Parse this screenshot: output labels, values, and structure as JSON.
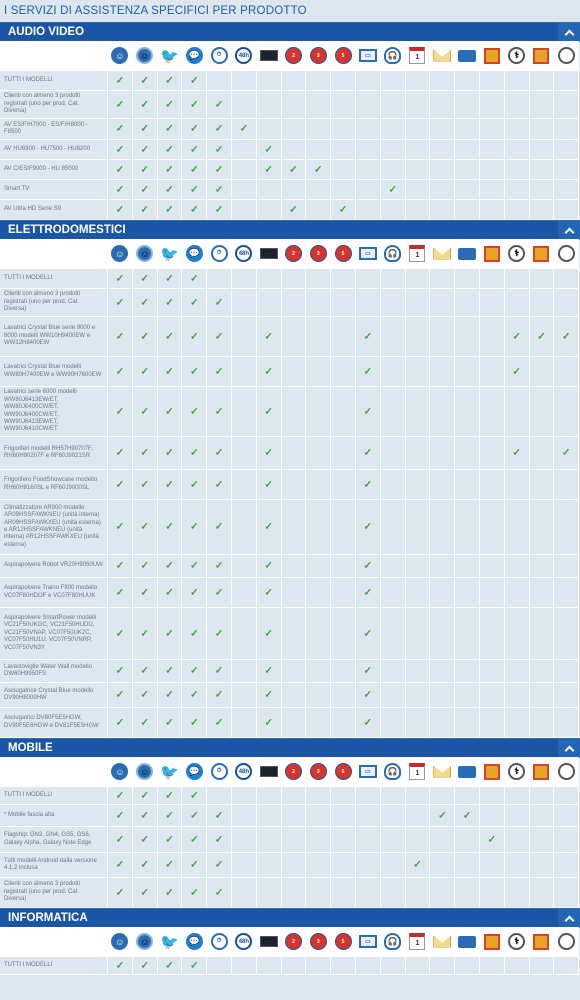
{
  "page_title": "I SERVIZI DI ASSISTENZA SPECIFICI PER PRODOTTO",
  "icons": [
    "chat-agent-icon",
    "chat-agent-2-icon",
    "twitter-icon",
    "messenger-icon",
    "clock-support-icon",
    "48h-icon",
    "tv-screen-icon",
    "2-anni-badge-icon",
    "3-anni-badge-icon",
    "5-anni-badge-icon",
    "remote-monitor-icon",
    "headset-icon",
    "calendar-1-icon",
    "envelope-icon",
    "delivery-truck-icon",
    "gift-icon",
    "doctor-icon",
    "extra-1-icon",
    "extra-2-icon"
  ],
  "icon_glyphs": [
    "☺",
    "☺",
    "🐦",
    "💬",
    "⏱",
    "48h",
    "",
    "2",
    "3",
    "5",
    "▭",
    "🎧",
    "1",
    "",
    "",
    "",
    "⚕",
    "",
    ""
  ],
  "sections": [
    {
      "title": "AUDIO VIDEO",
      "rows": [
        {
          "label": "TUTTI I MODELLI",
          "h": 20,
          "checks": [
            0,
            1,
            2,
            3
          ]
        },
        {
          "label": "Clienti con almeno 3 prodotti registrati (uno per prod. Cat. Diversa)",
          "h": 28,
          "checks": [
            0,
            1,
            2,
            3,
            4
          ]
        },
        {
          "label": "AV ES/F/H7000 - ES/F/H8000 - F8500",
          "h": 21,
          "checks": [
            0,
            1,
            2,
            3,
            4,
            5
          ]
        },
        {
          "label": "AV HU6900 - HU7500 - HU8200",
          "h": 20,
          "checks": [
            0,
            1,
            2,
            3,
            4,
            6
          ]
        },
        {
          "label": "AV C/ES/F9000 - HU 85000",
          "h": 20,
          "checks": [
            0,
            1,
            2,
            3,
            4,
            6,
            7,
            8
          ]
        },
        {
          "label": "Smart TV",
          "h": 20,
          "checks": [
            0,
            1,
            2,
            3,
            4,
            11
          ]
        },
        {
          "label": "AV Ultra HD Serie S9",
          "h": 20,
          "checks": [
            0,
            1,
            2,
            3,
            4,
            7,
            9
          ]
        }
      ]
    },
    {
      "title": "ELETTRODOMESTICI",
      "rows": [
        {
          "label": "TUTTI I MODELLI",
          "h": 20,
          "checks": [
            0,
            1,
            2,
            3
          ]
        },
        {
          "label": "Clienti con almeno 3 prodotti registrati (uno per prod. Cat. Diversa)",
          "h": 28,
          "checks": [
            0,
            1,
            2,
            3,
            4
          ]
        },
        {
          "label": "Lavatrici Crystal Blue serie 9000 e 8000 modelli WW10H9400EW e WW12H8400EW",
          "h": 40,
          "checks": [
            0,
            1,
            2,
            3,
            4,
            6,
            10,
            16,
            17,
            18
          ]
        },
        {
          "label": "Lavatrici Crystal Blue modelli WW80H7400EW e WW90H7600EW",
          "h": 30,
          "checks": [
            0,
            1,
            2,
            3,
            4,
            6,
            10,
            16
          ]
        },
        {
          "label": "Lavatrici serie 6000 modelli WW80J6413EW/ET, WW80J6400CW/ET, WW90J6400CW/ET, WW90J6413EW/ET, WW90J6410CW/ET",
          "h": 50,
          "checks": [
            0,
            1,
            2,
            3,
            4,
            6,
            10
          ]
        },
        {
          "label": "Frigoriferi modelli RH57H90707F, RH60H90207F e RF60J9021SR",
          "h": 33,
          "checks": [
            0,
            1,
            2,
            3,
            4,
            6,
            10,
            16,
            18
          ]
        },
        {
          "label": "Frigorifero FoodShowcase modello RH60H8160SL e RF60J9000SL",
          "h": 30,
          "checks": [
            0,
            1,
            2,
            3,
            4,
            6,
            10
          ]
        },
        {
          "label": "Climatizzatore AR900 modello AR09HSSFAWKNEU (unità interna) AR09HSSFAWKXEU (unità esterna) e AR12HSSFAWKNEU (unità interna) AR12HSSFAWKXEU (unità esterna)",
          "h": 55,
          "checks": [
            0,
            1,
            2,
            3,
            4,
            6,
            10
          ]
        },
        {
          "label": "Aspirapolvere Robot VR20H9050UW",
          "h": 23,
          "checks": [
            0,
            1,
            2,
            3,
            4,
            6,
            10
          ]
        },
        {
          "label": "Aspirapolvere Traino F800 modello VC07F80HDOF e VC07F80HUUK",
          "h": 30,
          "checks": [
            0,
            1,
            2,
            3,
            4,
            6,
            10
          ]
        },
        {
          "label": "Aspirapolvere SmartPower modelli VC21F50UKGC, VC21F50HUDU, VC21F50VNAP, VC07F50UK2C, VC07F50HU1U, VC07F50VNRP, VC07F50VN3Y",
          "h": 52,
          "checks": [
            0,
            1,
            2,
            3,
            4,
            6,
            10
          ]
        },
        {
          "label": "Lavastoviglie Water Wall modello DW60H9950FS",
          "h": 23,
          "checks": [
            0,
            1,
            2,
            3,
            4,
            6,
            10
          ]
        },
        {
          "label": "Asciugatrice Crystal Blue modello DV90H8000HW",
          "h": 25,
          "checks": [
            0,
            1,
            2,
            3,
            4,
            6,
            10
          ]
        },
        {
          "label": "Asciugatrici DV80F5E5HGW, DV90F5E6HGW e DV81F5E5HGW",
          "h": 30,
          "checks": [
            0,
            1,
            2,
            3,
            4,
            6,
            10
          ]
        }
      ]
    },
    {
      "title": "MOBILE",
      "rows": [
        {
          "label": "TUTTI I MODELLI",
          "h": 18,
          "checks": [
            0,
            1,
            2,
            3
          ]
        },
        {
          "label": "* Mobile fascia alta",
          "h": 22,
          "checks": [
            0,
            1,
            2,
            3,
            4,
            13,
            14
          ]
        },
        {
          "label": "Flagship: GN3, GN4, GS5, GS6, Galaxy Alpha, Galaxy Note Edge",
          "h": 26,
          "checks": [
            0,
            1,
            2,
            3,
            4,
            15
          ]
        },
        {
          "label": "Tutti modelli Android dalla versione 4.1.2 inclusa",
          "h": 25,
          "checks": [
            0,
            1,
            2,
            3,
            4,
            12
          ]
        },
        {
          "label": "Clienti con almeno 3 prodotti registrati (uno per prod. Cat. Diversa)",
          "h": 30,
          "checks": [
            0,
            1,
            2,
            3,
            4
          ]
        }
      ]
    },
    {
      "title": "INFORMATICA",
      "rows": [
        {
          "label": "TUTTI I MODELLI",
          "h": 18,
          "checks": [
            0,
            1,
            2,
            3
          ]
        }
      ]
    }
  ],
  "check_glyph": "✓",
  "colors": {
    "header": "#1b56a6",
    "check": "#3fa53a",
    "title": "#1a5fa8"
  }
}
